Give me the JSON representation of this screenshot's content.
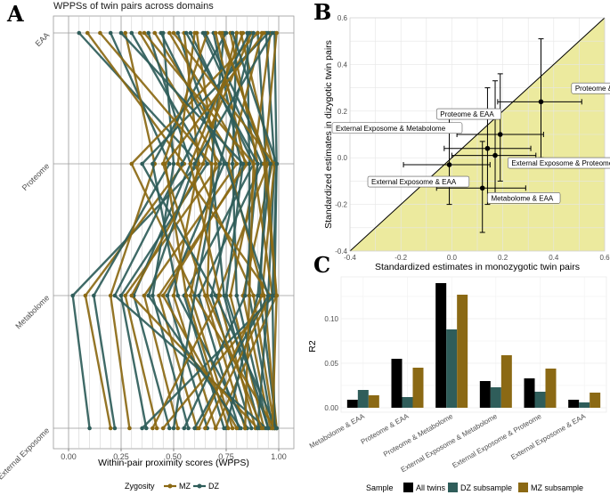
{
  "chart_data": [
    {
      "id": "A",
      "type": "line",
      "panel_letter": "A",
      "title": "WPPSs of twin pairs across domains",
      "xlabel": "Within-pair proximity scores (WPPS)",
      "categories": [
        "EAA",
        "Proteome",
        "Metabolome",
        "External Exposome"
      ],
      "xlim": [
        0,
        1
      ],
      "xticks": [
        "0.00",
        "0.25",
        "0.50",
        "0.75",
        "1.00"
      ],
      "legend_title": "Zygosity",
      "series": [
        {
          "name": "MZ",
          "color": "#8B6914"
        },
        {
          "name": "DZ",
          "color": "#2F5D5A"
        }
      ],
      "pairs_shown": [
        {
          "zygosity": "DZ",
          "values": [
            0.05,
            0.62,
            0.02,
            0.1
          ]
        },
        {
          "zygosity": "MZ",
          "values": [
            0.09,
            0.55,
            0.08,
            0.2
          ]
        },
        {
          "zygosity": "DZ",
          "values": [
            0.2,
            0.48,
            0.12,
            0.22
          ]
        },
        {
          "zygosity": "MZ",
          "values": [
            0.27,
            0.41,
            0.2,
            0.29
          ]
        },
        {
          "zygosity": "DZ",
          "values": [
            0.3,
            0.66,
            0.25,
            0.37
          ]
        },
        {
          "zygosity": "MZ",
          "values": [
            0.34,
            0.72,
            0.27,
            0.42
          ]
        },
        {
          "zygosity": "DZ",
          "values": [
            0.38,
            0.58,
            0.31,
            0.48
          ]
        },
        {
          "zygosity": "MZ",
          "values": [
            0.41,
            0.8,
            0.36,
            0.52
          ]
        },
        {
          "zygosity": "DZ",
          "values": [
            0.45,
            0.5,
            0.4,
            0.57
          ]
        },
        {
          "zygosity": "MZ",
          "values": [
            0.48,
            0.85,
            0.43,
            0.61
          ]
        },
        {
          "zygosity": "DZ",
          "values": [
            0.52,
            0.74,
            0.47,
            0.66
          ]
        },
        {
          "zygosity": "MZ",
          "values": [
            0.55,
            0.62,
            0.5,
            0.7
          ]
        },
        {
          "zygosity": "DZ",
          "values": [
            0.58,
            0.88,
            0.55,
            0.74
          ]
        },
        {
          "zygosity": "MZ",
          "values": [
            0.61,
            0.7,
            0.58,
            0.78
          ]
        },
        {
          "zygosity": "DZ",
          "values": [
            0.64,
            0.92,
            0.62,
            0.81
          ]
        },
        {
          "zygosity": "MZ",
          "values": [
            0.66,
            0.45,
            0.65,
            0.84
          ]
        },
        {
          "zygosity": "DZ",
          "values": [
            0.69,
            0.82,
            0.68,
            0.87
          ]
        },
        {
          "zygosity": "MZ",
          "values": [
            0.72,
            0.95,
            0.71,
            0.89
          ]
        },
        {
          "zygosity": "DZ",
          "values": [
            0.74,
            0.68,
            0.74,
            0.91
          ]
        },
        {
          "zygosity": "MZ",
          "values": [
            0.77,
            0.9,
            0.77,
            0.93
          ]
        },
        {
          "zygosity": "DZ",
          "values": [
            0.8,
            0.78,
            0.8,
            0.95
          ]
        },
        {
          "zygosity": "MZ",
          "values": [
            0.82,
            0.97,
            0.83,
            0.96
          ]
        },
        {
          "zygosity": "DZ",
          "values": [
            0.85,
            0.86,
            0.86,
            0.97
          ]
        },
        {
          "zygosity": "MZ",
          "values": [
            0.87,
            0.6,
            0.88,
            0.98
          ]
        },
        {
          "zygosity": "DZ",
          "values": [
            0.9,
            0.94,
            0.91,
            0.99
          ]
        },
        {
          "zygosity": "MZ",
          "values": [
            0.92,
            0.76,
            0.93,
            0.99
          ]
        },
        {
          "zygosity": "DZ",
          "values": [
            0.94,
            0.98,
            0.95,
            0.6
          ]
        },
        {
          "zygosity": "MZ",
          "values": [
            0.96,
            0.88,
            0.97,
            0.45
          ]
        },
        {
          "zygosity": "DZ",
          "values": [
            0.98,
            0.99,
            0.98,
            0.35
          ]
        },
        {
          "zygosity": "MZ",
          "values": [
            0.99,
            0.93,
            0.99,
            0.7
          ]
        },
        {
          "zygosity": "DZ",
          "values": [
            0.95,
            0.35,
            0.7,
            0.99
          ]
        },
        {
          "zygosity": "MZ",
          "values": [
            0.9,
            0.3,
            0.6,
            0.98
          ]
        },
        {
          "zygosity": "DZ",
          "values": [
            0.86,
            0.54,
            0.22,
            0.94
          ]
        },
        {
          "zygosity": "MZ",
          "values": [
            0.8,
            0.64,
            0.3,
            0.9
          ]
        },
        {
          "zygosity": "DZ",
          "values": [
            0.75,
            0.4,
            0.52,
            0.85
          ]
        },
        {
          "zygosity": "MZ",
          "values": [
            0.7,
            0.84,
            0.45,
            0.8
          ]
        },
        {
          "zygosity": "DZ",
          "values": [
            0.65,
            0.96,
            0.9,
            0.75
          ]
        },
        {
          "zygosity": "MZ",
          "values": [
            0.6,
            0.52,
            0.96,
            0.65
          ]
        },
        {
          "zygosity": "DZ",
          "values": [
            0.56,
            0.9,
            0.84,
            0.55
          ]
        },
        {
          "zygosity": "MZ",
          "values": [
            0.5,
            0.98,
            0.92,
            0.62
          ]
        },
        {
          "zygosity": "DZ",
          "values": [
            0.44,
            0.75,
            0.95,
            0.9
          ]
        },
        {
          "zygosity": "MZ",
          "values": [
            0.36,
            0.88,
            0.86,
            0.84
          ]
        },
        {
          "zygosity": "DZ",
          "values": [
            0.25,
            0.83,
            0.75,
            0.95
          ]
        },
        {
          "zygosity": "MZ",
          "values": [
            0.15,
            0.68,
            0.66,
            0.92
          ]
        },
        {
          "zygosity": "DZ",
          "values": [
            0.97,
            0.6,
            0.38,
            0.82
          ]
        },
        {
          "zygosity": "MZ",
          "values": [
            0.93,
            0.46,
            0.56,
            0.76
          ]
        },
        {
          "zygosity": "DZ",
          "values": [
            0.88,
            0.72,
            0.6,
            0.5
          ]
        },
        {
          "zygosity": "MZ",
          "values": [
            0.83,
            0.58,
            0.72,
            0.4
          ]
        },
        {
          "zygosity": "DZ",
          "values": [
            0.78,
            0.99,
            0.97,
            0.98
          ]
        },
        {
          "zygosity": "MZ",
          "values": [
            0.73,
            0.94,
            0.99,
            0.97
          ]
        }
      ]
    },
    {
      "id": "B",
      "type": "scatter",
      "panel_letter": "B",
      "xlabel": "Standardized estimates in monozygotic twin pairs",
      "ylabel": "Standardized estimates in dizygotic twin pairs",
      "xlim": [
        -0.4,
        0.6
      ],
      "ylim": [
        -0.4,
        0.6
      ],
      "xticks": [
        "-0.4",
        "-0.2",
        "0.0",
        "0.2",
        "0.4",
        "0.6"
      ],
      "yticks": [
        "-0.4",
        "-0.2",
        "0.0",
        "0.2",
        "0.4",
        "0.6"
      ],
      "reference_line": "y = x",
      "points": [
        {
          "label": "Proteome & Metabolome",
          "x": 0.35,
          "y": 0.24,
          "x_lo": 0.18,
          "x_hi": 0.51,
          "y_lo": 0.0,
          "y_hi": 0.51
        },
        {
          "label": "Proteome & EAA",
          "x": 0.19,
          "y": 0.1,
          "x_lo": 0.02,
          "x_hi": 0.36,
          "y_lo": -0.1,
          "y_hi": 0.36
        },
        {
          "label": "External Exposome & Metabolome",
          "x": 0.14,
          "y": 0.04,
          "x_lo": -0.03,
          "x_hi": 0.31,
          "y_lo": -0.2,
          "y_hi": 0.3
        },
        {
          "label": "External Exposome & Proteome",
          "x": 0.17,
          "y": 0.01,
          "x_lo": 0.0,
          "x_hi": 0.33,
          "y_lo": -0.15,
          "y_hi": 0.33
        },
        {
          "label": "External Exposome & EAA",
          "x": -0.01,
          "y": -0.03,
          "x_lo": -0.19,
          "x_hi": 0.15,
          "y_lo": -0.2,
          "y_hi": 0.17
        },
        {
          "label": "Metabolome & EAA",
          "x": 0.12,
          "y": -0.13,
          "x_lo": -0.06,
          "x_hi": 0.29,
          "y_lo": -0.32,
          "y_hi": 0.07
        }
      ]
    },
    {
      "id": "C",
      "type": "bar",
      "panel_letter": "C",
      "xlabel": "",
      "ylabel": "R2",
      "ylim": [
        0,
        0.15
      ],
      "yticks": [
        "0.00",
        "0.05",
        "0.10"
      ],
      "categories": [
        "Metabolome & EAA",
        "Proteome & EAA",
        "Proteome & Metabolome",
        "External Exposome & Metabolome",
        "External Exposome & Proteome",
        "External Exposome & EAA"
      ],
      "legend_title": "Sample",
      "series": [
        {
          "name": "All twins",
          "color": "#000000",
          "values": [
            0.009,
            0.055,
            0.14,
            0.03,
            0.033,
            0.009
          ]
        },
        {
          "name": "DZ subsample",
          "color": "#2F5D5A",
          "values": [
            0.02,
            0.012,
            0.088,
            0.023,
            0.018,
            0.006
          ]
        },
        {
          "name": "MZ subsample",
          "color": "#8B6914",
          "values": [
            0.014,
            0.045,
            0.127,
            0.059,
            0.044,
            0.017
          ]
        }
      ]
    }
  ]
}
